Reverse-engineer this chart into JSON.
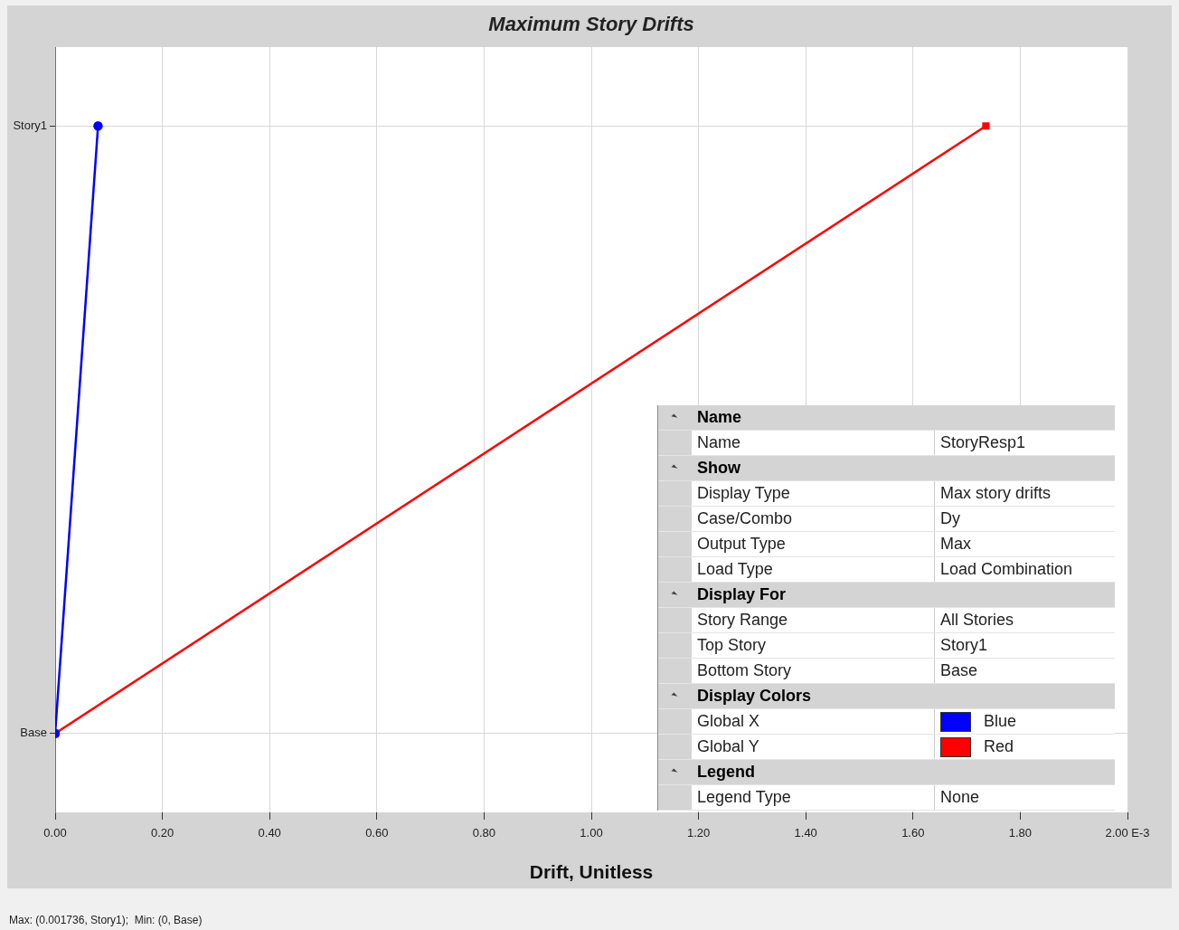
{
  "chart_data": [
    {
      "type": "line",
      "title": "Maximum Story Drifts",
      "xlabel": "Drift, Unitless",
      "orientation": "horizontal",
      "categories": [
        "Story1",
        "Base"
      ],
      "series": [
        {
          "name": null,
          "color": "#0000ff",
          "marker": "circle",
          "values": [
            0.08,
            0
          ]
        },
        {
          "name": null,
          "color": "#ff0000",
          "marker": "square",
          "values": [
            1.736,
            0
          ]
        }
      ],
      "xlim": [
        0,
        2
      ],
      "xticks": [
        {
          "value": 0,
          "label": "0.00"
        },
        {
          "value": 0.2,
          "label": "0.20"
        },
        {
          "value": 0.4,
          "label": "0.40"
        },
        {
          "value": 0.6,
          "label": "0.60"
        },
        {
          "value": 0.8,
          "label": "0.80"
        },
        {
          "value": 1,
          "label": "1.00"
        },
        {
          "value": 1.2,
          "label": "1.20"
        },
        {
          "value": 1.4,
          "label": "1.40"
        },
        {
          "value": 1.6,
          "label": "1.60"
        },
        {
          "value": 1.8,
          "label": "1.80"
        },
        {
          "value": 2,
          "label": "2.00 E-3"
        }
      ],
      "grid": true,
      "legend": false,
      "annotations": [
        "Max: (0.001736, Story1);  Min: (0, Base)"
      ]
    },
    {
      "type": "other",
      "y_categories": [
        "Name",
        "Name",
        "Show",
        "Display Type",
        "Case/Combo",
        "Output Type",
        "Load Type",
        "Display For",
        "Story Range",
        "Top Story",
        "Bottom Story",
        "Display Colors",
        "Global X",
        "Global Y",
        "Legend",
        "Legend Type"
      ],
      "cell_labels": [
        null,
        "StoryResp1",
        null,
        "Max story drifts",
        "Dy",
        "Max",
        "Load Combination",
        null,
        "All Stories",
        "Story1",
        "Base",
        null,
        "Blue",
        "Red",
        null,
        "None"
      ],
      "colors": [
        null,
        null,
        null,
        null,
        null,
        null,
        null,
        null,
        null,
        null,
        null,
        null,
        "#0000ff",
        "#ff0000",
        null,
        null
      ]
    }
  ]
}
